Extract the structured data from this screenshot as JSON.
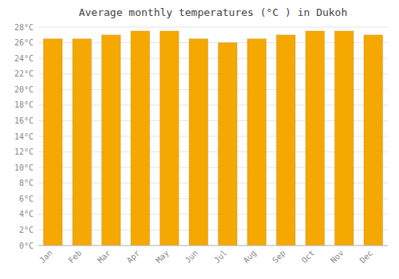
{
  "chart_data": {
    "type": "bar",
    "title": "Average monthly temperatures (°C ) in Dukoh",
    "categories": [
      "Jan",
      "Feb",
      "Mar",
      "Apr",
      "May",
      "Jun",
      "Jul",
      "Aug",
      "Sep",
      "Oct",
      "Nov",
      "Dec"
    ],
    "values": [
      26.5,
      26.5,
      27.0,
      27.5,
      27.5,
      26.5,
      26.0,
      26.5,
      27.0,
      27.5,
      27.5,
      27.0
    ],
    "color": "#F5A800",
    "ylim": [
      0,
      28
    ],
    "yticks": [
      {
        "value": 0,
        "label": "0°C"
      },
      {
        "value": 2,
        "label": "2°C"
      },
      {
        "value": 4,
        "label": "4°C"
      },
      {
        "value": 6,
        "label": "6°C"
      },
      {
        "value": 8,
        "label": "8°C"
      },
      {
        "value": 10,
        "label": "10°C"
      },
      {
        "value": 12,
        "label": "12°C"
      },
      {
        "value": 14,
        "label": "14°C"
      },
      {
        "value": 16,
        "label": "16°C"
      },
      {
        "value": 18,
        "label": "18°C"
      },
      {
        "value": 20,
        "label": "20°C"
      },
      {
        "value": 22,
        "label": "22°C"
      },
      {
        "value": 24,
        "label": "24°C"
      },
      {
        "value": 26,
        "label": "26°C"
      },
      {
        "value": 28,
        "label": "28°C"
      }
    ],
    "grid": true
  }
}
